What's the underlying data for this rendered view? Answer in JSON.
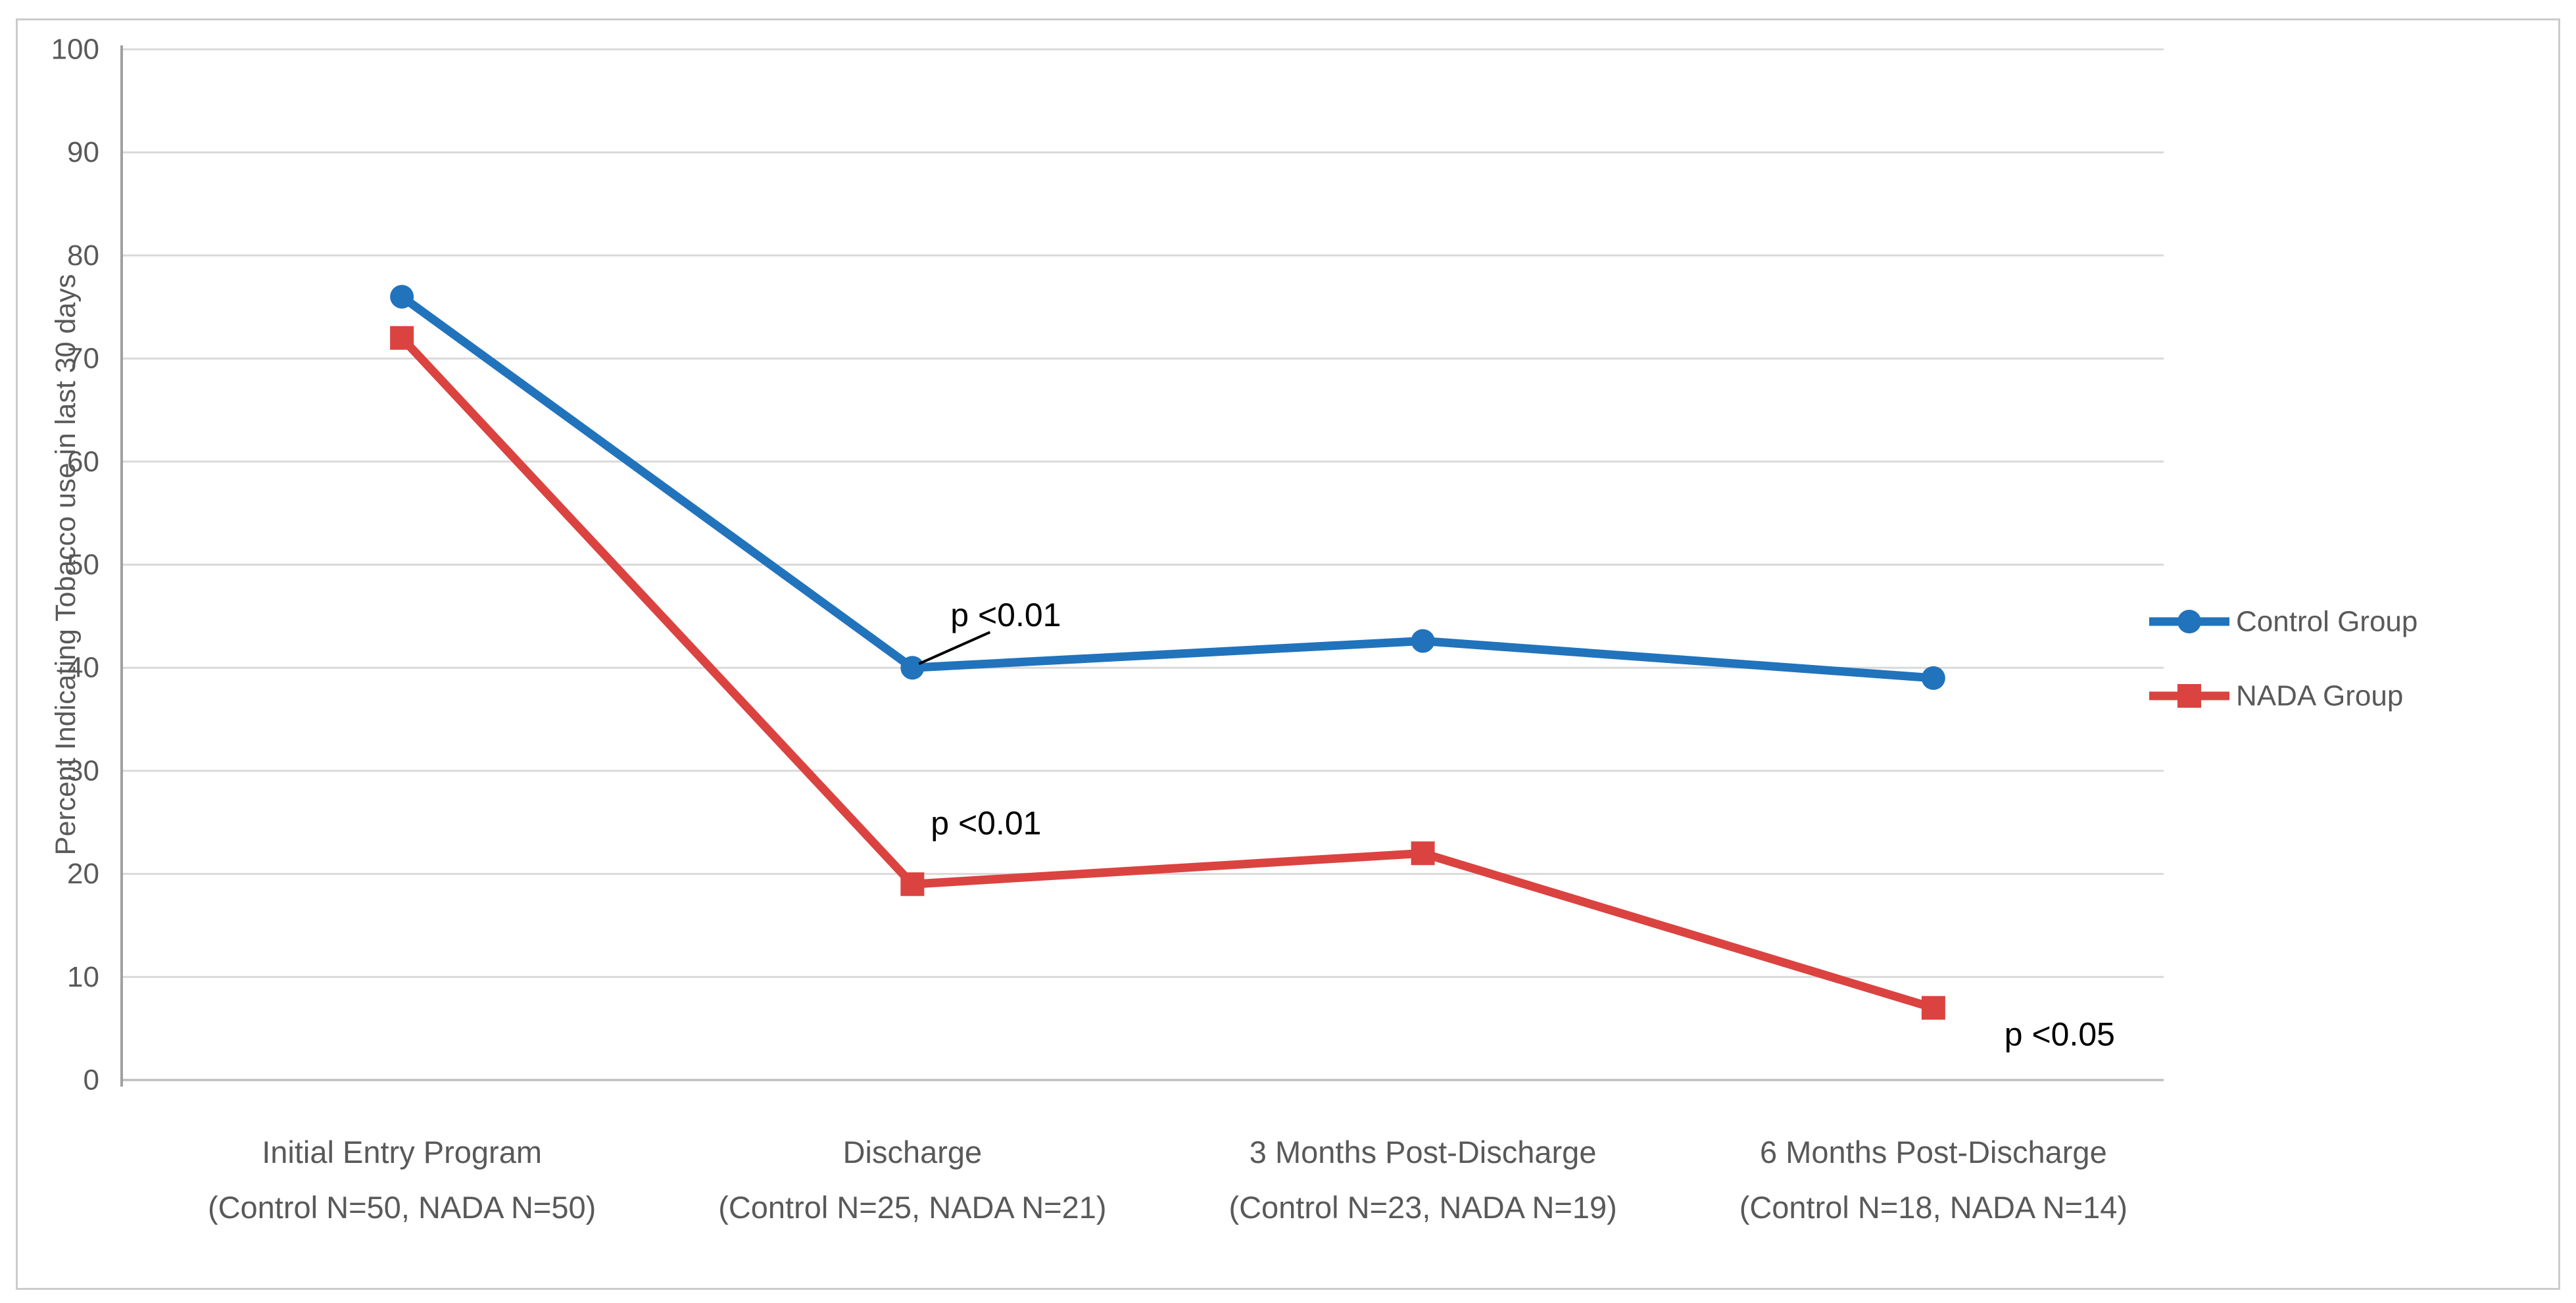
{
  "figure": {
    "background": "#ffffff",
    "border_color": "#cbcbcb"
  },
  "chart_data": {
    "type": "line",
    "title": "",
    "xlabel": "",
    "ylabel": "Percent Indicating Tobacco use in last 30 days",
    "ylim": [
      0,
      100
    ],
    "ytick_step": 10,
    "yticks": [
      0,
      10,
      20,
      30,
      40,
      50,
      60,
      70,
      80,
      90,
      100
    ],
    "grid": "horizontal",
    "legend_position": "right",
    "categories": [
      {
        "line1": "Initial Entry Program",
        "line2": "(Control N=50, NADA N=50)"
      },
      {
        "line1": "Discharge",
        "line2": "(Control N=25, NADA N=21)"
      },
      {
        "line1": "3 Months Post-Discharge",
        "line2": "(Control N=23, NADA N=19)"
      },
      {
        "line1": "6 Months Post-Discharge",
        "line2": "(Control N=18, NADA N=14)"
      }
    ],
    "series": [
      {
        "name": "Control Group",
        "color": "#2173BC",
        "marker": "circle",
        "values": [
          76,
          40,
          42.6,
          39
        ]
      },
      {
        "name": "NADA Group",
        "color": "#DB4340",
        "marker": "square",
        "values": [
          72,
          19,
          22,
          7
        ]
      }
    ],
    "annotations": [
      {
        "text": "p <0.01",
        "series": 0,
        "point": 1,
        "leader": true
      },
      {
        "text": "p <0.01",
        "series": 1,
        "point": 1,
        "leader": false
      },
      {
        "text": "p <0.05",
        "series": 1,
        "point": 3,
        "leader": false
      }
    ],
    "colors": {
      "gridline": "#D9D9D9",
      "x_axis": "#BFBFBF",
      "y_axis": "#A0A0A0",
      "tick_text": "#595959",
      "category_text": "#595959",
      "legend_text": "#595959",
      "ylabel_text": "#595959",
      "annotation_text": "#000000"
    }
  }
}
